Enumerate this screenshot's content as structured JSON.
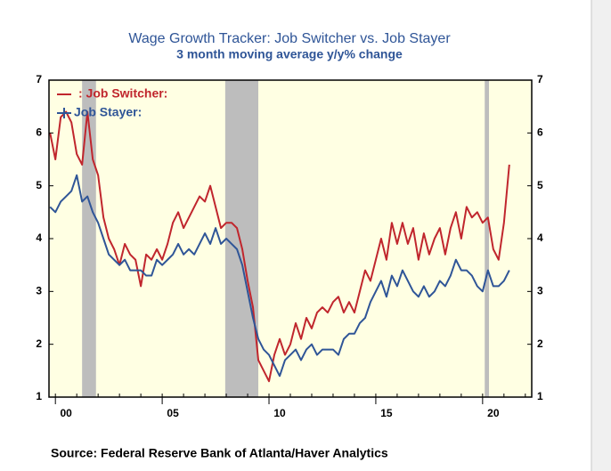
{
  "chart_data": {
    "type": "line",
    "title": "Wage Growth Tracker: Job Switcher vs. Job Stayer",
    "subtitle": "3 month moving average y/y% change",
    "source": "Source:  Federal Reserve Bank of Atlanta/Haver Analytics",
    "x": [
      1999.75,
      2000,
      2000.25,
      2000.5,
      2000.75,
      2001,
      2001.25,
      2001.5,
      2001.75,
      2002,
      2002.25,
      2002.5,
      2002.75,
      2003,
      2003.25,
      2003.5,
      2003.75,
      2004,
      2004.25,
      2004.5,
      2004.75,
      2005,
      2005.25,
      2005.5,
      2005.75,
      2006,
      2006.25,
      2006.5,
      2006.75,
      2007,
      2007.25,
      2007.5,
      2007.75,
      2008,
      2008.25,
      2008.5,
      2008.75,
      2009,
      2009.25,
      2009.5,
      2009.75,
      2010,
      2010.25,
      2010.5,
      2010.75,
      2011,
      2011.25,
      2011.5,
      2011.75,
      2012,
      2012.25,
      2012.5,
      2012.75,
      2013,
      2013.25,
      2013.5,
      2013.75,
      2014,
      2014.25,
      2014.5,
      2014.75,
      2015,
      2015.25,
      2015.5,
      2015.75,
      2016,
      2016.25,
      2016.5,
      2016.75,
      2017,
      2017.25,
      2017.5,
      2017.75,
      2018,
      2018.25,
      2018.5,
      2018.75,
      2019,
      2019.25,
      2019.5,
      2019.75,
      2020,
      2020.25,
      2020.5,
      2020.75,
      2021,
      2021.25
    ],
    "series": [
      {
        "name": ": Job Switcher:",
        "color": "#c0262d",
        "values": [
          6.0,
          5.5,
          6.3,
          6.4,
          6.2,
          5.6,
          5.4,
          6.4,
          5.5,
          5.2,
          4.4,
          4.0,
          3.8,
          3.5,
          3.9,
          3.7,
          3.6,
          3.1,
          3.7,
          3.6,
          3.8,
          3.6,
          3.9,
          4.3,
          4.5,
          4.2,
          4.4,
          4.6,
          4.8,
          4.7,
          5.0,
          4.6,
          4.2,
          4.3,
          4.3,
          4.2,
          3.8,
          3.2,
          2.7,
          1.7,
          1.5,
          1.3,
          1.8,
          2.1,
          1.8,
          2.0,
          2.4,
          2.1,
          2.5,
          2.3,
          2.6,
          2.7,
          2.6,
          2.8,
          2.9,
          2.6,
          2.8,
          2.6,
          3.0,
          3.4,
          3.2,
          3.6,
          4.0,
          3.6,
          4.3,
          3.9,
          4.3,
          3.9,
          4.2,
          3.6,
          4.1,
          3.7,
          4.0,
          4.2,
          3.7,
          4.2,
          4.5,
          4.0,
          4.6,
          4.4,
          4.5,
          4.3,
          4.4,
          3.8,
          3.6,
          4.3,
          5.4
        ]
      },
      {
        "name": "Job Stayer:",
        "color": "#2f5597",
        "values": [
          4.6,
          4.5,
          4.7,
          4.8,
          4.9,
          5.2,
          4.7,
          4.8,
          4.5,
          4.3,
          4.0,
          3.7,
          3.6,
          3.5,
          3.6,
          3.4,
          3.4,
          3.4,
          3.3,
          3.3,
          3.6,
          3.5,
          3.6,
          3.7,
          3.9,
          3.7,
          3.8,
          3.7,
          3.9,
          4.1,
          3.9,
          4.2,
          3.9,
          4.0,
          3.9,
          3.8,
          3.5,
          3.0,
          2.5,
          2.1,
          1.9,
          1.8,
          1.6,
          1.4,
          1.7,
          1.8,
          1.9,
          1.7,
          1.9,
          2.0,
          1.8,
          1.9,
          1.9,
          1.9,
          1.8,
          2.1,
          2.2,
          2.2,
          2.4,
          2.5,
          2.8,
          3.0,
          3.2,
          2.9,
          3.3,
          3.1,
          3.4,
          3.2,
          3.0,
          2.9,
          3.1,
          2.9,
          3.0,
          3.2,
          3.1,
          3.3,
          3.6,
          3.4,
          3.4,
          3.3,
          3.1,
          3.0,
          3.4,
          3.1,
          3.1,
          3.2,
          3.4
        ]
      }
    ],
    "recessions": [
      [
        2001.25,
        2001.9
      ],
      [
        2007.95,
        2009.5
      ],
      [
        2020.1,
        2020.3
      ]
    ],
    "xlim": [
      1999.7,
      2022.3
    ],
    "xticks": [
      {
        "value": 2000,
        "label": "00"
      },
      {
        "value": 2005,
        "label": "05"
      },
      {
        "value": 2010,
        "label": "10"
      },
      {
        "value": 2015,
        "label": "15"
      },
      {
        "value": 2020,
        "label": "20"
      }
    ],
    "ylim": [
      1,
      7
    ],
    "yticks": [
      1,
      2,
      3,
      4,
      5,
      6,
      7
    ],
    "y2lim": [
      1,
      7
    ],
    "y2ticks": [
      1,
      2,
      3,
      4,
      5,
      6,
      7
    ],
    "legend": "top-left"
  }
}
